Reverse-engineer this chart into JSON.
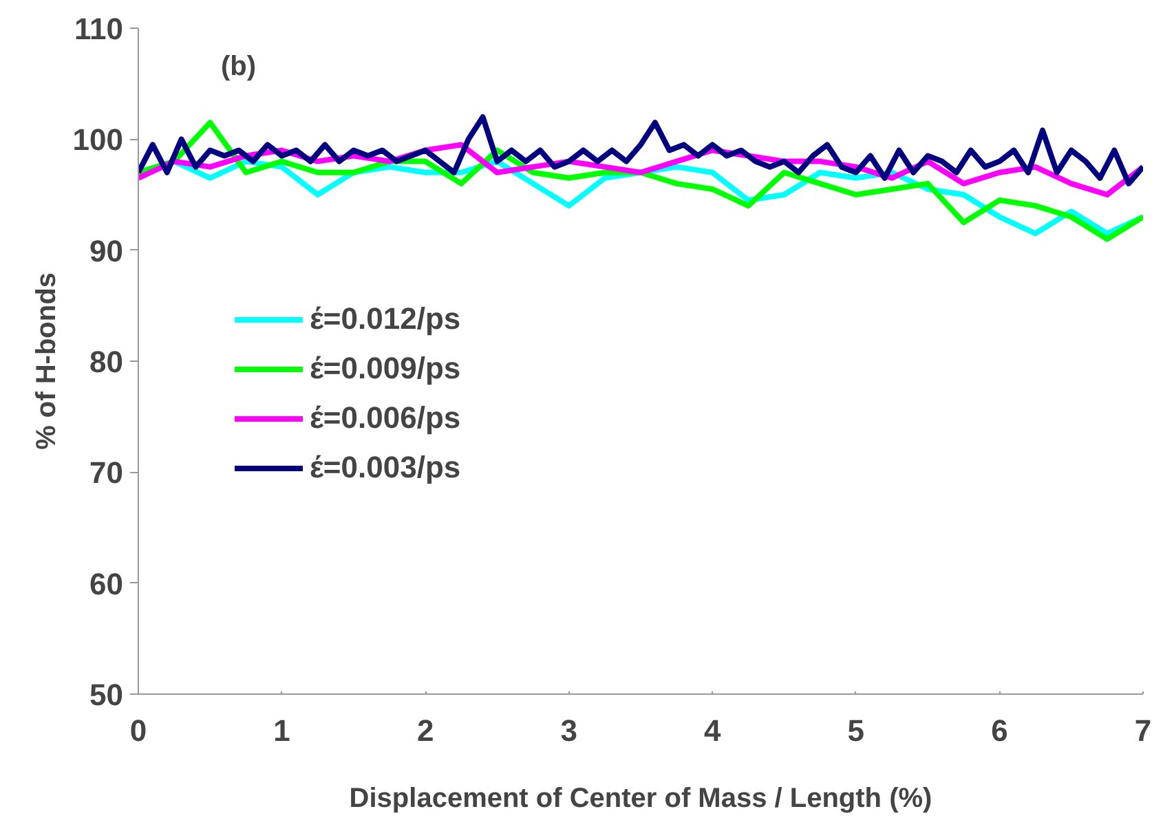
{
  "chart_data": {
    "type": "line",
    "xlabel": "Displacement of Center of Mass / Length (%)",
    "ylabel": "% of H-bonds",
    "annotations": [
      "(b)"
    ],
    "xlim": [
      0,
      7
    ],
    "xticks": [
      0,
      1,
      2,
      3,
      4,
      5,
      6,
      7
    ],
    "ylim": [
      50,
      110
    ],
    "yticks": [
      50,
      60,
      70,
      80,
      90,
      100,
      110
    ],
    "grid": false,
    "legend": "left",
    "marker": "none",
    "line_style": "solid",
    "series": [
      {
        "name": "έ=0.012/ps",
        "color": "#00ffff",
        "x": [
          0,
          0.25,
          0.5,
          0.75,
          1,
          1.25,
          1.5,
          1.75,
          2,
          2.25,
          2.5,
          2.75,
          3,
          3.25,
          3.5,
          3.75,
          4,
          4.25,
          4.5,
          4.75,
          5,
          5.25,
          5.5,
          5.75,
          6,
          6.25,
          6.5,
          6.75,
          7
        ],
        "values": [
          97,
          98,
          96.5,
          98,
          97.5,
          95,
          97,
          97.5,
          97,
          97,
          98,
          96,
          94,
          96.5,
          97,
          97.5,
          97,
          94.5,
          95,
          97,
          96.5,
          97,
          95.5,
          95,
          93,
          91.5,
          93.5,
          91.5,
          93
        ]
      },
      {
        "name": "έ=0.009/ps",
        "color": "#00ff00",
        "x": [
          0,
          0.25,
          0.5,
          0.75,
          1,
          1.25,
          1.5,
          1.75,
          2,
          2.25,
          2.5,
          2.75,
          3,
          3.25,
          3.5,
          3.75,
          4,
          4.25,
          4.5,
          4.75,
          5,
          5.25,
          5.5,
          5.75,
          6,
          6.25,
          6.5,
          6.75,
          7
        ],
        "values": [
          97,
          98,
          101.5,
          97,
          98,
          97,
          97,
          98,
          98,
          96,
          99,
          97,
          96.5,
          97,
          97,
          96,
          95.5,
          94,
          97,
          96,
          95,
          95.5,
          96,
          92.5,
          94.5,
          94,
          93,
          91,
          93
        ]
      },
      {
        "name": "έ=0.006/ps",
        "color": "#ff00ff",
        "x": [
          0,
          0.25,
          0.5,
          0.75,
          1,
          1.25,
          1.5,
          1.75,
          2,
          2.25,
          2.5,
          2.75,
          3,
          3.25,
          3.5,
          3.75,
          4,
          4.25,
          4.5,
          4.75,
          5,
          5.25,
          5.5,
          5.75,
          6,
          6.25,
          6.5,
          6.75,
          7
        ],
        "values": [
          96.5,
          98,
          97.5,
          98.5,
          99,
          98,
          98.5,
          98,
          99,
          99.5,
          97,
          97.5,
          98,
          97.5,
          97,
          98,
          99,
          98.5,
          98,
          98,
          97.5,
          96.5,
          98,
          96,
          97,
          97.5,
          96,
          95,
          97.5
        ]
      },
      {
        "name": "έ=0.003/ps",
        "color": "#000080",
        "x": [
          0,
          0.1,
          0.2,
          0.3,
          0.4,
          0.5,
          0.6,
          0.7,
          0.8,
          0.9,
          1,
          1.1,
          1.2,
          1.3,
          1.4,
          1.5,
          1.6,
          1.7,
          1.8,
          1.9,
          2,
          2.1,
          2.2,
          2.3,
          2.4,
          2.5,
          2.6,
          2.7,
          2.8,
          2.9,
          3,
          3.1,
          3.2,
          3.3,
          3.4,
          3.5,
          3.6,
          3.7,
          3.8,
          3.9,
          4,
          4.1,
          4.2,
          4.3,
          4.4,
          4.5,
          4.6,
          4.7,
          4.8,
          4.9,
          5,
          5.1,
          5.2,
          5.3,
          5.4,
          5.5,
          5.6,
          5.7,
          5.8,
          5.9,
          6,
          6.1,
          6.2,
          6.3,
          6.4,
          6.5,
          6.6,
          6.7,
          6.8,
          6.9,
          7
        ],
        "values": [
          97,
          99.5,
          97,
          100,
          97.5,
          99,
          98.5,
          99,
          98,
          99.5,
          98.5,
          99,
          98,
          99.5,
          98,
          99,
          98.5,
          99,
          98,
          98.5,
          99,
          98,
          97,
          100,
          102,
          98,
          99,
          98,
          99,
          97.5,
          98,
          99,
          98,
          99,
          98,
          99.5,
          101.5,
          99,
          99.5,
          98.5,
          99.5,
          98.5,
          99,
          98,
          97.5,
          98,
          97,
          98.5,
          99.5,
          97.5,
          97,
          98.5,
          96.5,
          99,
          97,
          98.5,
          98,
          97,
          99,
          97.5,
          98,
          99,
          97,
          100.8,
          97,
          99,
          98,
          96.5,
          99,
          96,
          97.5
        ]
      }
    ]
  }
}
